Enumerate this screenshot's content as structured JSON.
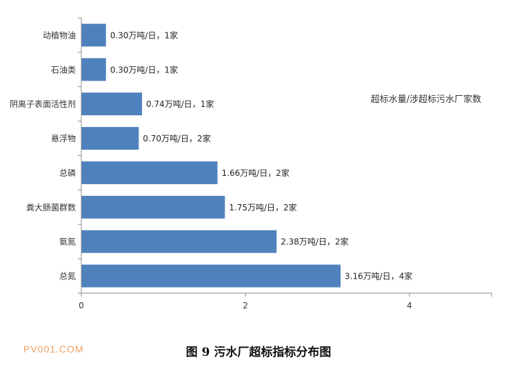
{
  "figure": {
    "caption": "图 9    污水厂超标指标分布图",
    "watermark": "PV001.COM"
  },
  "chart_data": {
    "type": "bar",
    "orientation": "horizontal",
    "title": "",
    "xlabel": "",
    "ylabel": "",
    "annotation": "超标水量/涉超标污水厂家数",
    "categories": [
      "动植物油",
      "石油类",
      "阴离子表面活性剂",
      "悬浮物",
      "总磷",
      "粪大肠菌群数",
      "氨氮",
      "总氮"
    ],
    "values": [
      0.3,
      0.3,
      0.74,
      0.7,
      1.66,
      1.75,
      2.38,
      3.16
    ],
    "data_labels": [
      "0.30万吨/日，1家",
      "0.30万吨/日，1家",
      "0.74万吨/日，1家",
      "0.70万吨/日，2家",
      "1.66万吨/日，2家",
      "1.75万吨/日，2家",
      "2.38万吨/日，2家",
      "3.16万吨/日，4家"
    ],
    "xlim": [
      0,
      5
    ],
    "xticks": [
      0,
      2,
      4
    ],
    "grid": false,
    "bar_color": "#4f81bd"
  }
}
